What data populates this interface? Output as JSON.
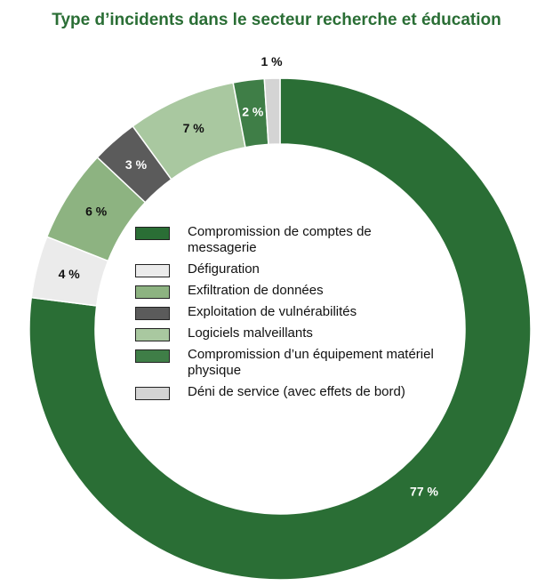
{
  "chart_data": {
    "type": "donut",
    "title": "Type d’incidents dans le secteur recherche et éducation",
    "categories": [
      "Compromission de comptes de messagerie",
      "Défiguration",
      "Exfiltration de données",
      "Exploitation de vulnérabilités",
      "Logiciels malveillants",
      "Compromission d’un équipement matériel physique",
      "Déni de service (avec effets de bord)"
    ],
    "values": [
      77,
      4,
      6,
      3,
      7,
      2,
      1
    ],
    "value_labels": [
      "77 %",
      "4 %",
      "6 %",
      "3 %",
      "7 %",
      "2 %",
      "1 %"
    ],
    "colors": [
      "#2a6e35",
      "#ebebeb",
      "#8db381",
      "#5b5b5b",
      "#a9c8a0",
      "#3f7e47",
      "#d4d4d4"
    ]
  }
}
